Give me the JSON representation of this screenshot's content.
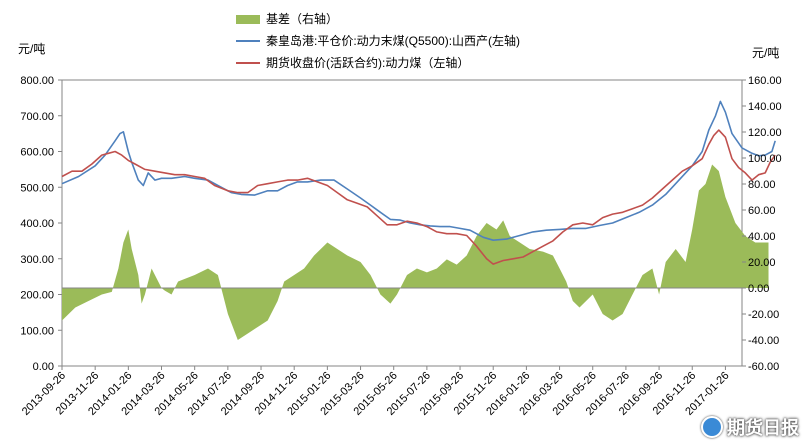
{
  "chart_data": {
    "type": "line+area",
    "left_axis": {
      "unit": "元/吨",
      "ticks": [
        "0.00",
        "100.00",
        "200.00",
        "300.00",
        "400.00",
        "500.00",
        "600.00",
        "700.00",
        "800.00"
      ],
      "range": [
        0,
        800
      ]
    },
    "right_axis": {
      "unit": "元/吨",
      "ticks": [
        "-60.00",
        "-40.00",
        "-20.00",
        "0.00",
        "20.00",
        "40.00",
        "60.00",
        "80.00",
        "100.00",
        "120.00",
        "140.00",
        "160.00"
      ],
      "range": [
        -60,
        160
      ]
    },
    "x_ticks": [
      "2013-09-26",
      "2013-11-26",
      "2014-01-26",
      "2014-03-26",
      "2014-05-26",
      "2014-07-26",
      "2014-09-26",
      "2014-11-26",
      "2015-01-26",
      "2015-03-26",
      "2015-05-26",
      "2015-07-26",
      "2015-09-26",
      "2015-11-26",
      "2016-01-26",
      "2016-03-26",
      "2016-05-26",
      "2016-07-26",
      "2016-09-26",
      "2016-11-26",
      "2017-01-26"
    ],
    "series": [
      {
        "name": "基差（右轴）",
        "axis": "right",
        "type": "area",
        "color": "#9bbb59",
        "points": [
          [
            0,
            -25
          ],
          [
            0.4,
            -15
          ],
          [
            0.8,
            -10
          ],
          [
            1.2,
            -5
          ],
          [
            1.5,
            -3
          ],
          [
            1.7,
            15
          ],
          [
            1.85,
            35
          ],
          [
            2.0,
            45
          ],
          [
            2.1,
            30
          ],
          [
            2.3,
            10
          ],
          [
            2.4,
            -12
          ],
          [
            2.5,
            -5
          ],
          [
            2.7,
            15
          ],
          [
            2.9,
            5
          ],
          [
            3.0,
            0
          ],
          [
            3.1,
            -2
          ],
          [
            3.3,
            -5
          ],
          [
            3.5,
            5
          ],
          [
            4.0,
            10
          ],
          [
            4.4,
            15
          ],
          [
            4.7,
            10
          ],
          [
            5.0,
            -20
          ],
          [
            5.3,
            -40
          ],
          [
            5.6,
            -35
          ],
          [
            5.9,
            -30
          ],
          [
            6.2,
            -25
          ],
          [
            6.5,
            -10
          ],
          [
            6.7,
            5
          ],
          [
            7.0,
            10
          ],
          [
            7.3,
            15
          ],
          [
            7.6,
            25
          ],
          [
            8.0,
            35
          ],
          [
            8.3,
            30
          ],
          [
            8.6,
            25
          ],
          [
            9.0,
            20
          ],
          [
            9.3,
            10
          ],
          [
            9.6,
            -5
          ],
          [
            9.9,
            -12
          ],
          [
            10.1,
            -5
          ],
          [
            10.4,
            10
          ],
          [
            10.7,
            15
          ],
          [
            11.0,
            12
          ],
          [
            11.3,
            15
          ],
          [
            11.6,
            22
          ],
          [
            11.9,
            18
          ],
          [
            12.2,
            25
          ],
          [
            12.5,
            40
          ],
          [
            12.8,
            50
          ],
          [
            13.1,
            45
          ],
          [
            13.3,
            52
          ],
          [
            13.5,
            40
          ],
          [
            13.8,
            35
          ],
          [
            14.1,
            30
          ],
          [
            14.5,
            28
          ],
          [
            14.8,
            25
          ],
          [
            15.0,
            15
          ],
          [
            15.2,
            5
          ],
          [
            15.4,
            -10
          ],
          [
            15.6,
            -15
          ],
          [
            15.8,
            -10
          ],
          [
            16.0,
            -5
          ],
          [
            16.3,
            -20
          ],
          [
            16.6,
            -25
          ],
          [
            16.9,
            -20
          ],
          [
            17.2,
            -5
          ],
          [
            17.5,
            10
          ],
          [
            17.8,
            15
          ],
          [
            18.0,
            -5
          ],
          [
            18.2,
            20
          ],
          [
            18.5,
            30
          ],
          [
            18.8,
            20
          ],
          [
            19.0,
            45
          ],
          [
            19.2,
            75
          ],
          [
            19.4,
            80
          ],
          [
            19.6,
            95
          ],
          [
            19.8,
            90
          ],
          [
            20.0,
            70
          ],
          [
            20.3,
            50
          ],
          [
            20.6,
            40
          ],
          [
            20.9,
            35
          ],
          [
            21.3,
            35
          ]
        ]
      },
      {
        "name": "秦皇岛港:平仓价:动力末煤(Q5500):山西产(左轴)",
        "axis": "left",
        "type": "line",
        "color": "#4f81bd",
        "points": [
          [
            0,
            510
          ],
          [
            0.5,
            530
          ],
          [
            1.0,
            560
          ],
          [
            1.3,
            590
          ],
          [
            1.6,
            630
          ],
          [
            1.75,
            650
          ],
          [
            1.85,
            655
          ],
          [
            2.0,
            600
          ],
          [
            2.1,
            570
          ],
          [
            2.3,
            520
          ],
          [
            2.45,
            505
          ],
          [
            2.6,
            540
          ],
          [
            2.8,
            520
          ],
          [
            3.0,
            525
          ],
          [
            3.3,
            525
          ],
          [
            3.7,
            530
          ],
          [
            4.0,
            525
          ],
          [
            4.4,
            520
          ],
          [
            4.7,
            505
          ],
          [
            5.1,
            485
          ],
          [
            5.4,
            480
          ],
          [
            5.8,
            478
          ],
          [
            6.2,
            490
          ],
          [
            6.5,
            490
          ],
          [
            6.8,
            505
          ],
          [
            7.1,
            515
          ],
          [
            7.4,
            515
          ],
          [
            7.8,
            520
          ],
          [
            8.2,
            520
          ],
          [
            8.6,
            495
          ],
          [
            9.0,
            470
          ],
          [
            9.3,
            450
          ],
          [
            9.6,
            430
          ],
          [
            9.9,
            410
          ],
          [
            10.2,
            408
          ],
          [
            10.5,
            400
          ],
          [
            10.8,
            395
          ],
          [
            11.1,
            392
          ],
          [
            11.4,
            390
          ],
          [
            11.7,
            390
          ],
          [
            12.0,
            385
          ],
          [
            12.3,
            380
          ],
          [
            12.7,
            360
          ],
          [
            13.0,
            352
          ],
          [
            13.4,
            355
          ],
          [
            13.8,
            365
          ],
          [
            14.2,
            375
          ],
          [
            14.6,
            380
          ],
          [
            15.0,
            382
          ],
          [
            15.4,
            385
          ],
          [
            15.8,
            385
          ],
          [
            16.2,
            393
          ],
          [
            16.6,
            400
          ],
          [
            17.0,
            415
          ],
          [
            17.4,
            430
          ],
          [
            17.8,
            450
          ],
          [
            18.2,
            480
          ],
          [
            18.6,
            520
          ],
          [
            19.0,
            560
          ],
          [
            19.3,
            600
          ],
          [
            19.5,
            660
          ],
          [
            19.7,
            700
          ],
          [
            19.85,
            740
          ],
          [
            20.0,
            710
          ],
          [
            20.2,
            650
          ],
          [
            20.5,
            610
          ],
          [
            20.8,
            595
          ],
          [
            21.0,
            588
          ],
          [
            21.2,
            590
          ],
          [
            21.4,
            600
          ],
          [
            21.5,
            630
          ]
        ]
      },
      {
        "name": "期货收盘价(活跃合约):动力煤（左轴）",
        "axis": "left",
        "type": "line",
        "color": "#c0504d",
        "points": [
          [
            0,
            530
          ],
          [
            0.3,
            545
          ],
          [
            0.6,
            545
          ],
          [
            0.9,
            565
          ],
          [
            1.2,
            590
          ],
          [
            1.4,
            595
          ],
          [
            1.6,
            600
          ],
          [
            1.8,
            590
          ],
          [
            2.0,
            575
          ],
          [
            2.2,
            565
          ],
          [
            2.5,
            550
          ],
          [
            2.8,
            545
          ],
          [
            3.1,
            540
          ],
          [
            3.4,
            535
          ],
          [
            3.7,
            535
          ],
          [
            4.0,
            530
          ],
          [
            4.3,
            525
          ],
          [
            4.6,
            505
          ],
          [
            5.0,
            490
          ],
          [
            5.3,
            485
          ],
          [
            5.6,
            485
          ],
          [
            5.9,
            505
          ],
          [
            6.2,
            510
          ],
          [
            6.5,
            515
          ],
          [
            6.8,
            520
          ],
          [
            7.1,
            520
          ],
          [
            7.4,
            525
          ],
          [
            7.7,
            515
          ],
          [
            8.0,
            505
          ],
          [
            8.3,
            485
          ],
          [
            8.6,
            465
          ],
          [
            8.9,
            455
          ],
          [
            9.2,
            445
          ],
          [
            9.5,
            420
          ],
          [
            9.8,
            395
          ],
          [
            10.1,
            395
          ],
          [
            10.4,
            405
          ],
          [
            10.7,
            400
          ],
          [
            11.0,
            390
          ],
          [
            11.3,
            375
          ],
          [
            11.6,
            370
          ],
          [
            11.9,
            370
          ],
          [
            12.2,
            365
          ],
          [
            12.5,
            335
          ],
          [
            12.8,
            300
          ],
          [
            13.0,
            285
          ],
          [
            13.3,
            295
          ],
          [
            13.6,
            300
          ],
          [
            13.9,
            305
          ],
          [
            14.2,
            320
          ],
          [
            14.5,
            335
          ],
          [
            14.8,
            350
          ],
          [
            15.1,
            375
          ],
          [
            15.4,
            395
          ],
          [
            15.7,
            400
          ],
          [
            16.0,
            395
          ],
          [
            16.3,
            415
          ],
          [
            16.6,
            425
          ],
          [
            16.9,
            430
          ],
          [
            17.2,
            440
          ],
          [
            17.5,
            450
          ],
          [
            17.8,
            470
          ],
          [
            18.1,
            495
          ],
          [
            18.4,
            520
          ],
          [
            18.7,
            545
          ],
          [
            19.0,
            560
          ],
          [
            19.3,
            580
          ],
          [
            19.5,
            620
          ],
          [
            19.65,
            645
          ],
          [
            19.8,
            660
          ],
          [
            20.0,
            640
          ],
          [
            20.2,
            580
          ],
          [
            20.4,
            555
          ],
          [
            20.6,
            540
          ],
          [
            20.8,
            520
          ],
          [
            21.0,
            535
          ],
          [
            21.2,
            540
          ],
          [
            21.35,
            570
          ],
          [
            21.5,
            590
          ]
        ]
      }
    ]
  },
  "legend": {
    "basis_label": "基差（右轴）",
    "spot_label": "秦皇岛港:平仓价:动力末煤(Q5500):山西产(左轴)",
    "futures_label": "期货收盘价(活跃合约):动力煤（左轴）"
  },
  "watermark": {
    "text": "期货日报"
  }
}
